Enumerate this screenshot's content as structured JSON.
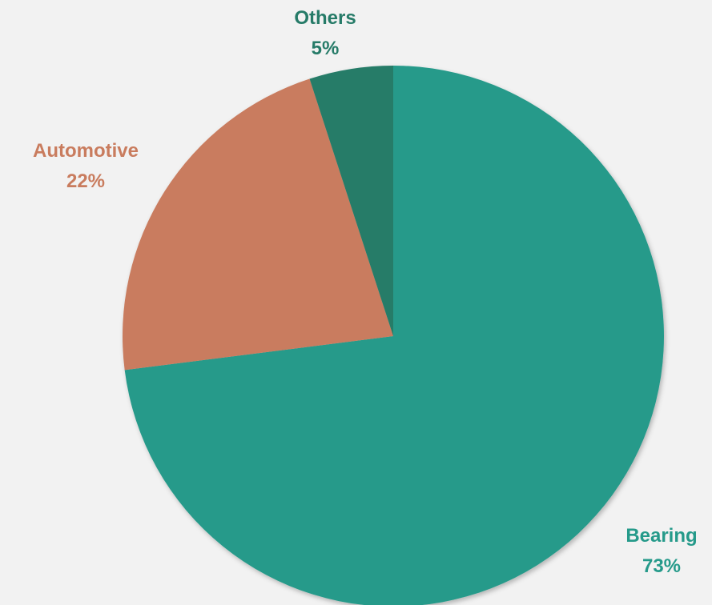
{
  "chart_data": {
    "type": "pie",
    "title": "",
    "slices": [
      {
        "label": "Bearing",
        "value": 73,
        "pct_text": "73%",
        "color": "#259a8a"
      },
      {
        "label": "Automotive",
        "value": 22,
        "pct_text": "22%",
        "color": "#c97c5e"
      },
      {
        "label": "Others",
        "value": 5,
        "pct_text": "5%",
        "color": "#267b68"
      }
    ],
    "start_angle_deg": 0,
    "direction": "clockwise",
    "legend": "none",
    "label_position": "outside"
  }
}
